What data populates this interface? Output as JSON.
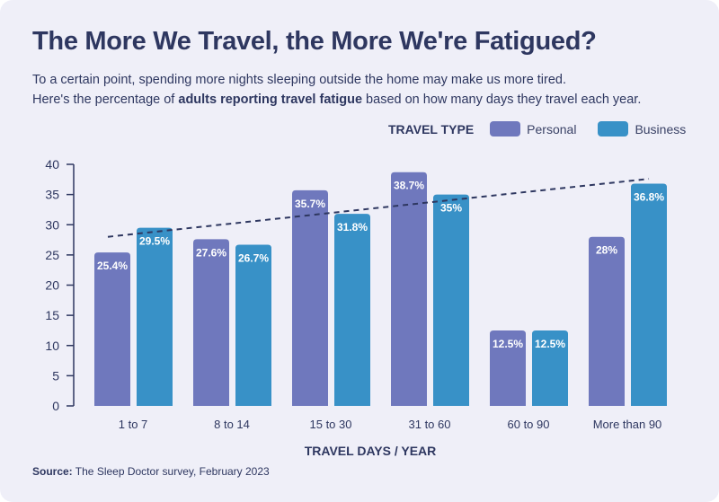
{
  "title": "The More We Travel, the More We're Fatigued?",
  "subtitle_line1": "To a certain point, spending more nights sleeping outside the home may make us more tired.",
  "subtitle_line2_pre": "Here's the percentage of ",
  "subtitle_line2_bold": "adults reporting travel fatigue",
  "subtitle_line2_post": " based on how many days they travel each year.",
  "source_label": "Source:",
  "source_text": " The Sleep Doctor survey, February 2023",
  "colors": {
    "personal": "#6f78bd",
    "business": "#3891c7",
    "text": "#2e3760",
    "background": "#efeff8"
  },
  "chart_data": {
    "type": "bar",
    "title": "The More We Travel, the More We're Fatigued?",
    "xlabel": "TRAVEL DAYS / YEAR",
    "ylabel": "",
    "ylim": [
      0,
      40
    ],
    "yticks": [
      0,
      5,
      10,
      15,
      20,
      25,
      30,
      35,
      40
    ],
    "grid": false,
    "legend_title": "TRAVEL TYPE",
    "legend_position": "top-right",
    "categories": [
      "1 to 7",
      "8 to 14",
      "15 to 30",
      "31 to 60",
      "60 to 90",
      "More than 90"
    ],
    "series": [
      {
        "name": "Personal",
        "values": [
          25.4,
          27.6,
          35.7,
          38.7,
          12.5,
          28
        ],
        "labels": [
          "25.4%",
          "27.6%",
          "35.7%",
          "38.7%",
          "12.5%",
          "28%"
        ]
      },
      {
        "name": "Business",
        "values": [
          29.5,
          26.7,
          31.8,
          35,
          12.5,
          36.8
        ],
        "labels": [
          "29.5%",
          "26.7%",
          "31.8%",
          "35%",
          "12.5%",
          "36.8%"
        ]
      }
    ],
    "trendline": {
      "style": "dashed",
      "start_value": 28,
      "end_value": 37.6
    }
  }
}
